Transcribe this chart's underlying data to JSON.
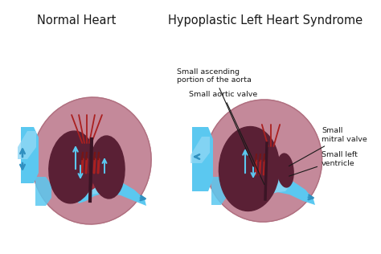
{
  "background_color": "#ffffff",
  "title_left": "Normal Heart",
  "title_right": "Hypoplastic Left Heart Syndrome",
  "title_fontsize": 10.5,
  "title_color": "#1a1a1a",
  "heart_outer": "#c4899a",
  "heart_mid": "#b07080",
  "heart_dark": "#7a3a50",
  "heart_cavity": "#5a2035",
  "heart_top_red": "#9b3040",
  "blue_vessel": "#5bc8f0",
  "blue_light": "#90d8f5",
  "blue_dark": "#3090c0",
  "red_vessel": "#aa2020",
  "red_dark": "#771515",
  "dark_sep": "#3a1525",
  "ann_color": "#1a1a1a",
  "ann_fs": 6.8,
  "label_aorta": "Small ascending\nportion of the aorta",
  "label_valve": "Small aortic valve",
  "label_mitral": "Small\nmitral valve",
  "label_lv": "Small left\nventricle"
}
